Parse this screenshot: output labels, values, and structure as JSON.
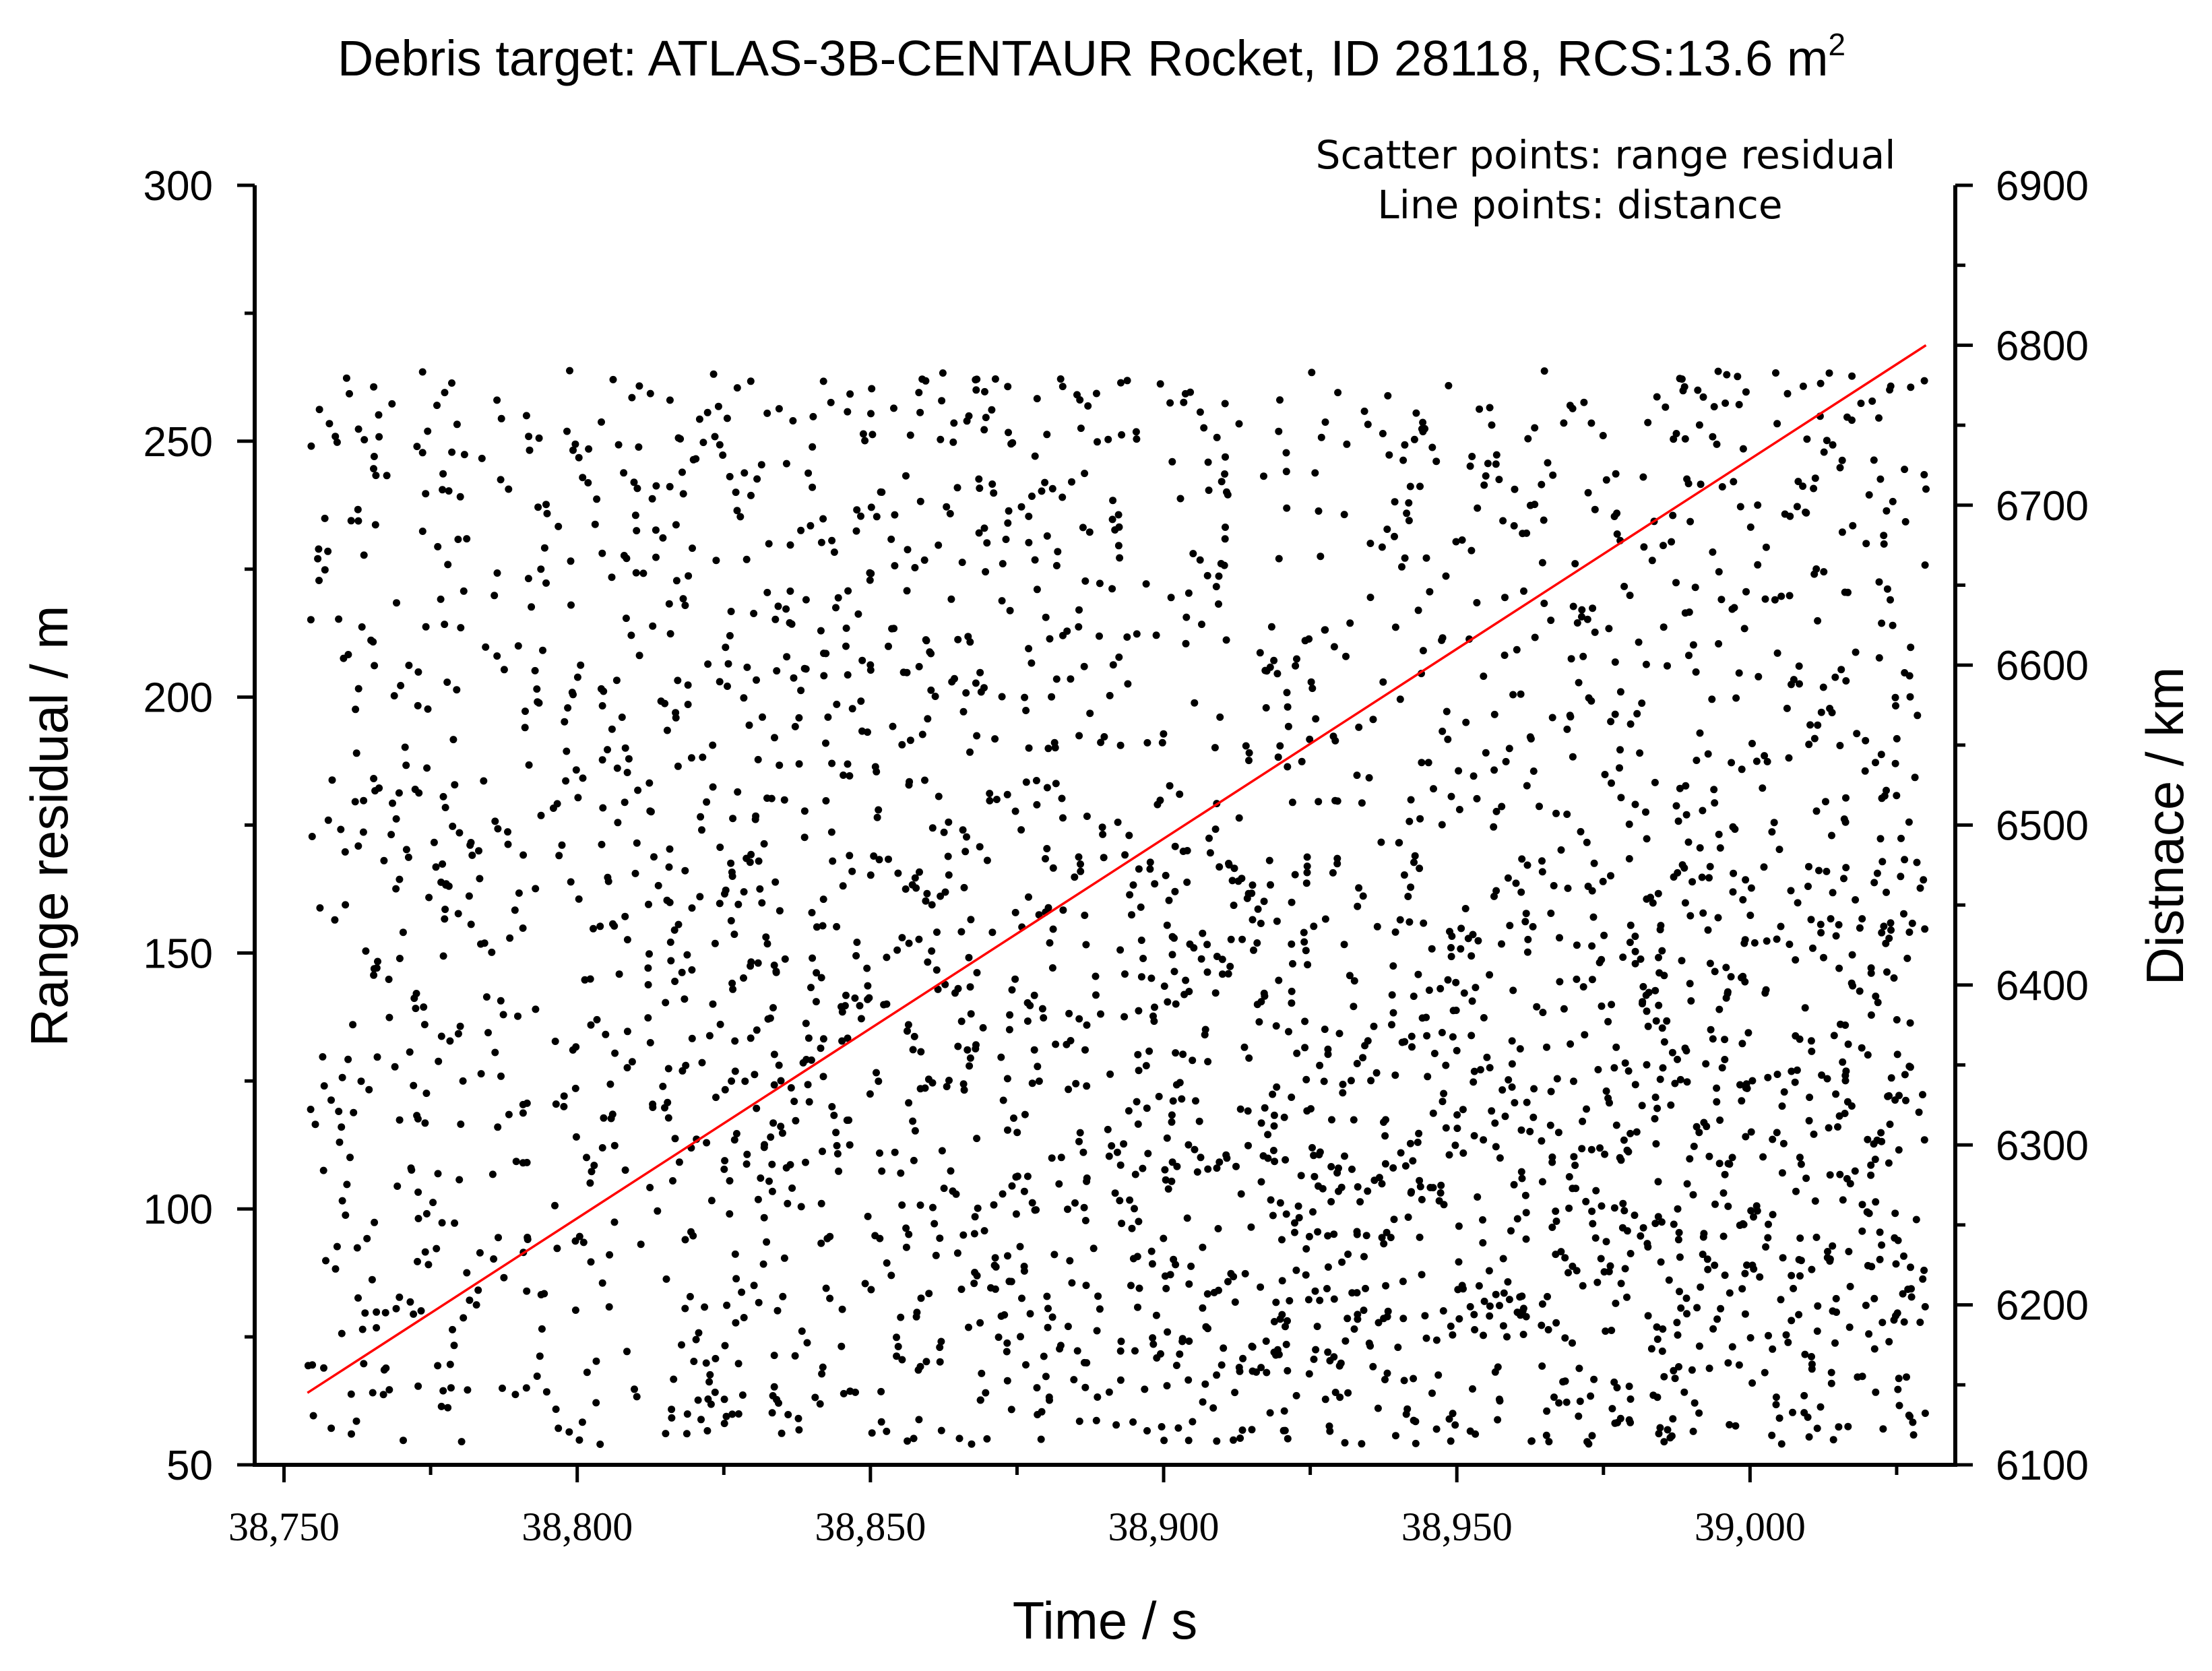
{
  "chart_data": {
    "type": "scatter",
    "title": "Debris target: ATLAS-3B-CENTAUR Rocket, ID 28118, RCS:13.6 m",
    "title_superscript": "2",
    "legend": [
      "Scatter points: range residual",
      "Line points: distance"
    ],
    "legend_position": "top-right",
    "xlabel": "Time / s",
    "ylabel": "Range residual / m",
    "y2label": "Distnace / km",
    "xlim": [
      38745,
      39035
    ],
    "ylim": [
      50,
      300
    ],
    "y2lim": [
      6100,
      6900
    ],
    "x_ticks": [
      38750,
      38800,
      38850,
      38900,
      38950,
      39000
    ],
    "x_tick_labels": [
      "38,750",
      "38,800",
      "38,850",
      "38,900",
      "38,950",
      "39,000"
    ],
    "y_ticks": [
      50,
      100,
      150,
      200,
      250,
      300
    ],
    "y_tick_labels": [
      "50",
      "100",
      "150",
      "200",
      "250",
      "300"
    ],
    "y2_ticks": [
      6100,
      6200,
      6300,
      6400,
      6500,
      6600,
      6700,
      6800,
      6900
    ],
    "y2_tick_labels": [
      "6100",
      "6200",
      "6300",
      "6400",
      "6500",
      "6600",
      "6700",
      "6800",
      "6900"
    ],
    "grid": false,
    "series": [
      {
        "name": "range residual",
        "kind": "scatter",
        "axis": "left",
        "color": "#000000",
        "x_range": [
          38754,
          39030
        ],
        "y_range": [
          54,
          264
        ],
        "point_count": 3000
      },
      {
        "name": "distance",
        "kind": "line",
        "axis": "right",
        "color": "#ff0000",
        "x": [
          38754,
          39030
        ],
        "y": [
          6145,
          6800
        ]
      }
    ]
  }
}
